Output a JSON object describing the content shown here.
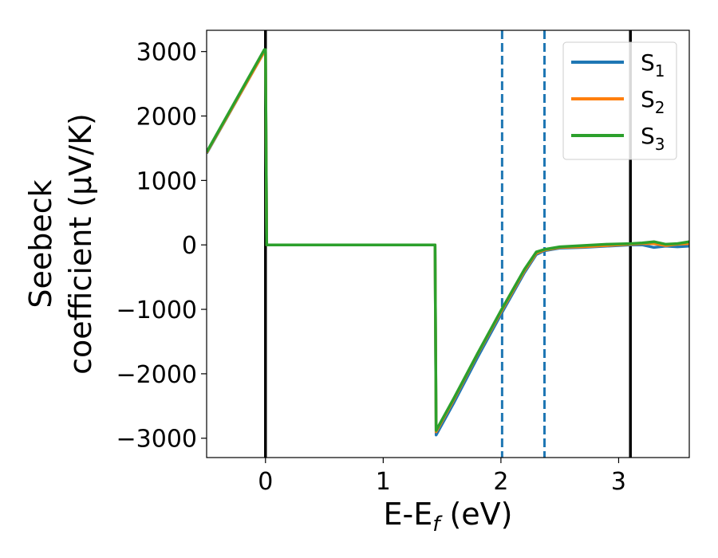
{
  "chart_data": {
    "type": "line",
    "title": "",
    "xlabel": "E-E",
    "xlabel_sub": "f",
    "xlabel_unit": " (eV)",
    "ylabel_line1": "Seebeck",
    "ylabel_line2": "coefficient  (μV/K)",
    "xlim": [
      -0.5,
      3.6
    ],
    "ylim": [
      -3300,
      3330
    ],
    "xticks": [
      0,
      1,
      2,
      3
    ],
    "xtick_labels": [
      "0",
      "1",
      "2",
      "3"
    ],
    "yticks": [
      3000,
      2000,
      1000,
      0,
      -1000,
      -2000,
      -3000
    ],
    "ytick_labels": [
      "3000",
      "2000",
      "1000",
      "0",
      "−1000",
      "−2000",
      "−3000"
    ],
    "grid": false,
    "legend_position": "top-right",
    "vertical_lines": [
      {
        "x": 0.0,
        "style": "solid",
        "color": "#000000"
      },
      {
        "x": 3.1,
        "style": "solid",
        "color": "#000000"
      },
      {
        "x": 2.01,
        "style": "dashed",
        "color": "#1f77b4"
      },
      {
        "x": 2.37,
        "style": "dashed",
        "color": "#1f77b4"
      }
    ],
    "series": [
      {
        "name": "S",
        "name_sub": "1",
        "color": "#1f77b4",
        "x": [
          -0.5,
          -0.01,
          0.0,
          0.01,
          1.43,
          1.44,
          1.45,
          1.6,
          1.8,
          2.0,
          2.2,
          2.3,
          2.37,
          2.5,
          2.7,
          2.9,
          3.1,
          3.2,
          3.3,
          3.4,
          3.5,
          3.6
        ],
        "y": [
          1420,
          3000,
          3000,
          0,
          0,
          0,
          -2950,
          -2450,
          -1750,
          -1080,
          -430,
          -150,
          -90,
          -50,
          -40,
          -20,
          0,
          0,
          -40,
          -20,
          -30,
          -20
        ]
      },
      {
        "name": "S",
        "name_sub": "2",
        "color": "#ff7f0e",
        "x": [
          -0.5,
          -0.01,
          0.0,
          0.01,
          1.43,
          1.44,
          1.45,
          1.6,
          1.8,
          2.0,
          2.2,
          2.3,
          2.37,
          2.5,
          2.7,
          2.9,
          3.1,
          3.2,
          3.3,
          3.4,
          3.5,
          3.6
        ],
        "y": [
          1430,
          3000,
          3000,
          0,
          0,
          0,
          -2900,
          -2400,
          -1700,
          -1040,
          -400,
          -130,
          -80,
          -40,
          -30,
          -10,
          10,
          20,
          20,
          -10,
          10,
          20
        ]
      },
      {
        "name": "S",
        "name_sub": "3",
        "color": "#2ca02c",
        "x": [
          -0.5,
          -0.01,
          0.0,
          0.01,
          1.43,
          1.44,
          1.45,
          1.6,
          1.8,
          2.0,
          2.2,
          2.3,
          2.37,
          2.5,
          2.7,
          2.9,
          3.1,
          3.2,
          3.3,
          3.4,
          3.5,
          3.6
        ],
        "y": [
          1440,
          3030,
          3030,
          0,
          0,
          0,
          -2880,
          -2380,
          -1690,
          -1020,
          -380,
          -110,
          -70,
          -30,
          -10,
          10,
          20,
          30,
          50,
          10,
          20,
          50
        ]
      }
    ]
  }
}
